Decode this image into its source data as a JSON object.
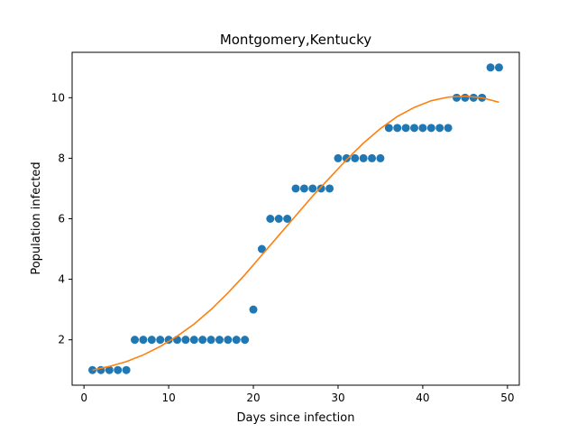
{
  "chart_data": {
    "type": "scatter",
    "title": "Montgomery,Kentucky",
    "xlabel": "Days since infection",
    "ylabel": "Population infected",
    "xlim": [
      -1.4,
      51.4
    ],
    "ylim": [
      0.5,
      11.5
    ],
    "xticks": [
      0,
      10,
      20,
      30,
      40,
      50
    ],
    "yticks": [
      2,
      4,
      6,
      8,
      10
    ],
    "grid": false,
    "legend": "none",
    "series": [
      {
        "kind": "scatter",
        "color": "#1f77b4",
        "x": [
          1,
          2,
          3,
          4,
          5,
          6,
          7,
          8,
          9,
          10,
          11,
          12,
          13,
          14,
          15,
          16,
          17,
          18,
          19,
          20,
          21,
          22,
          23,
          24,
          25,
          26,
          27,
          28,
          29,
          30,
          31,
          32,
          33,
          34,
          35,
          36,
          37,
          38,
          39,
          40,
          41,
          42,
          43,
          44,
          45,
          46,
          47,
          48,
          49
        ],
        "y": [
          1,
          1,
          1,
          1,
          1,
          2,
          2,
          2,
          2,
          2,
          2,
          2,
          2,
          2,
          2,
          2,
          2,
          2,
          2,
          3,
          5,
          6,
          6,
          6,
          7,
          7,
          7,
          7,
          7,
          8,
          8,
          8,
          8,
          8,
          8,
          9,
          9,
          9,
          9,
          9,
          9,
          9,
          9,
          10,
          10,
          10,
          10,
          11,
          11
        ]
      },
      {
        "kind": "line",
        "color": "#ff7f0e",
        "x": [
          1,
          3,
          5,
          7,
          9,
          11,
          13,
          15,
          17,
          19,
          21,
          23,
          25,
          27,
          29,
          31,
          33,
          35,
          37,
          39,
          41,
          43,
          45,
          47,
          49
        ],
        "y": [
          1.0,
          1.12,
          1.28,
          1.5,
          1.78,
          2.12,
          2.52,
          3.0,
          3.55,
          4.15,
          4.8,
          5.45,
          6.1,
          6.75,
          7.35,
          7.95,
          8.5,
          8.98,
          9.38,
          9.68,
          9.9,
          10.02,
          10.05,
          10.0,
          9.85
        ]
      }
    ]
  }
}
